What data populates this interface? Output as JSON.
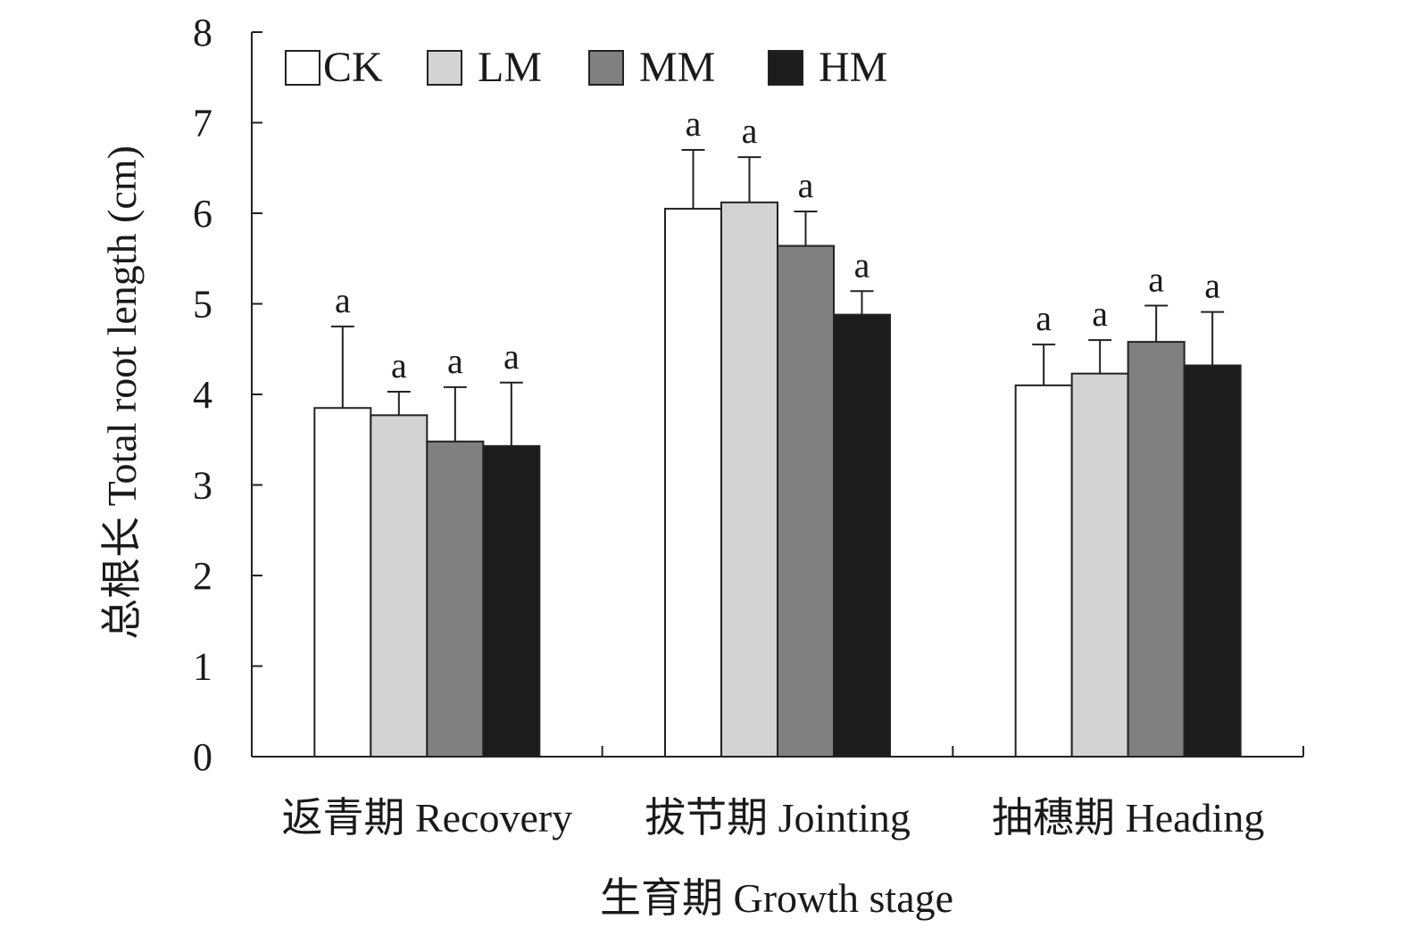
{
  "chart_data": {
    "type": "bar",
    "xlabel": "生育期 Growth stage",
    "ylabel": "总根长 Total root length (cm)",
    "ylim": [
      0,
      8
    ],
    "yticks": [
      0,
      1,
      2,
      3,
      4,
      5,
      6,
      7,
      8
    ],
    "categories": [
      "返青期 Recovery",
      "拔节期 Jointing",
      "抽穗期 Heading"
    ],
    "legend_position": "top-left",
    "grid": false,
    "series": [
      {
        "name": "CK",
        "color": "#ffffff",
        "values": [
          3.85,
          6.05,
          4.1
        ],
        "errors": [
          0.9,
          0.65,
          0.45
        ],
        "labels": [
          "a",
          "a",
          "a"
        ]
      },
      {
        "name": "LM",
        "color": "#d3d3d3",
        "values": [
          3.77,
          6.12,
          4.23
        ],
        "errors": [
          0.26,
          0.5,
          0.37
        ],
        "labels": [
          "a",
          "a",
          "a"
        ]
      },
      {
        "name": "MM",
        "color": "#808080",
        "values": [
          3.48,
          5.64,
          4.58
        ],
        "errors": [
          0.6,
          0.38,
          0.4
        ],
        "labels": [
          "a",
          "a",
          "a"
        ]
      },
      {
        "name": "HM",
        "color": "#1c1c1c",
        "values": [
          3.43,
          4.88,
          4.32
        ],
        "errors": [
          0.7,
          0.26,
          0.59
        ],
        "labels": [
          "a",
          "a",
          "a"
        ]
      }
    ]
  }
}
